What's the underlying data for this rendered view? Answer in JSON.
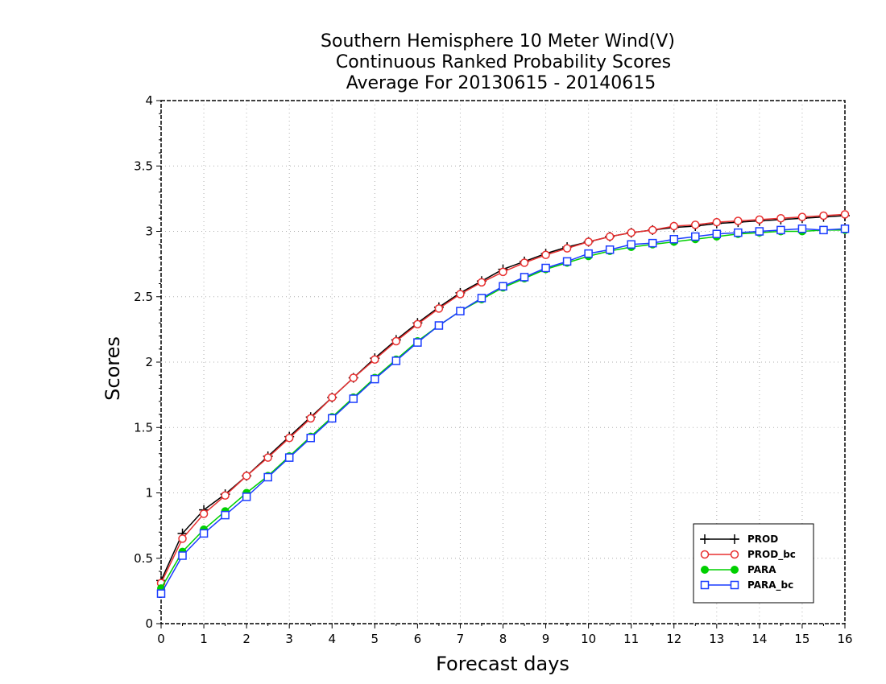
{
  "chart_data": {
    "type": "line",
    "title": [
      "Southern Hemisphere 10 Meter Wind(V)",
      "Continuous Ranked Probability Scores",
      "Average For 20130615 - 20140615"
    ],
    "xlabel": "Forecast days",
    "ylabel": "Scores",
    "xlim": [
      0,
      16
    ],
    "ylim": [
      0,
      4
    ],
    "xticks": [
      "0",
      "1",
      "2",
      "3",
      "4",
      "5",
      "6",
      "7",
      "8",
      "9",
      "10",
      "11",
      "12",
      "13",
      "14",
      "15",
      "16"
    ],
    "yticks": [
      "0",
      "0.5",
      "1",
      "1.5",
      "2",
      "2.5",
      "3",
      "3.5",
      "4"
    ],
    "grid": true,
    "legend_position": "bottom-right",
    "x": [
      0,
      0.5,
      1,
      1.5,
      2,
      2.5,
      3,
      3.5,
      4,
      4.5,
      5,
      5.5,
      6,
      6.5,
      7,
      7.5,
      8,
      8.5,
      9,
      9.5,
      10,
      10.5,
      11,
      11.5,
      12,
      12.5,
      13,
      13.5,
      14,
      14.5,
      15,
      15.5,
      16
    ],
    "series": [
      {
        "name": "PROD",
        "color": "#000000",
        "marker": "plus",
        "values": [
          0.33,
          0.69,
          0.87,
          0.99,
          1.13,
          1.28,
          1.43,
          1.58,
          1.73,
          1.88,
          2.03,
          2.17,
          2.3,
          2.42,
          2.53,
          2.62,
          2.71,
          2.77,
          2.83,
          2.88,
          2.92,
          2.96,
          2.99,
          3.01,
          3.03,
          3.04,
          3.06,
          3.07,
          3.08,
          3.09,
          3.1,
          3.11,
          3.12
        ]
      },
      {
        "name": "PROD_bc",
        "color": "#e83030",
        "marker": "circle-open",
        "values": [
          0.31,
          0.65,
          0.84,
          0.98,
          1.13,
          1.27,
          1.42,
          1.57,
          1.73,
          1.88,
          2.02,
          2.16,
          2.29,
          2.41,
          2.52,
          2.61,
          2.69,
          2.76,
          2.82,
          2.87,
          2.92,
          2.96,
          2.99,
          3.01,
          3.04,
          3.05,
          3.07,
          3.08,
          3.09,
          3.1,
          3.11,
          3.12,
          3.13
        ]
      },
      {
        "name": "PARA",
        "color": "#00d000",
        "marker": "circle-filled",
        "values": [
          0.27,
          0.55,
          0.72,
          0.86,
          1.0,
          1.13,
          1.28,
          1.43,
          1.58,
          1.73,
          1.88,
          2.02,
          2.16,
          2.28,
          2.39,
          2.48,
          2.57,
          2.64,
          2.71,
          2.76,
          2.81,
          2.85,
          2.88,
          2.9,
          2.92,
          2.94,
          2.96,
          2.98,
          2.99,
          3.0,
          3.0,
          3.01,
          3.01
        ]
      },
      {
        "name": "PARA_bc",
        "color": "#1a3cff",
        "marker": "square-open",
        "values": [
          0.23,
          0.52,
          0.69,
          0.83,
          0.97,
          1.12,
          1.27,
          1.42,
          1.57,
          1.72,
          1.87,
          2.01,
          2.15,
          2.28,
          2.39,
          2.49,
          2.58,
          2.65,
          2.72,
          2.77,
          2.83,
          2.86,
          2.9,
          2.91,
          2.94,
          2.96,
          2.98,
          2.99,
          3.0,
          3.01,
          3.02,
          3.01,
          3.02
        ]
      }
    ]
  }
}
